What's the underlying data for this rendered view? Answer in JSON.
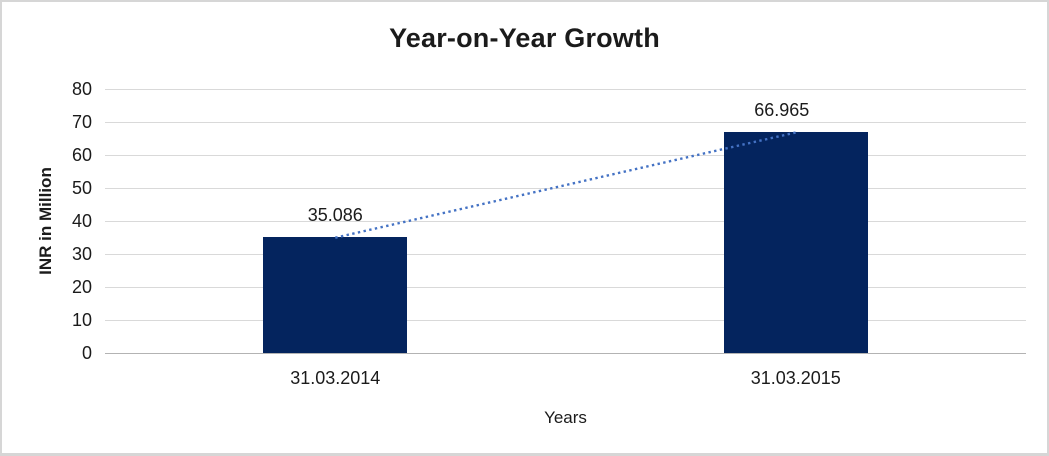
{
  "chart_data": {
    "type": "bar",
    "title": "Year-on-Year Growth",
    "categories": [
      "31.03.2014",
      "31.03.2015"
    ],
    "values": [
      35.086,
      66.965
    ],
    "data_labels": [
      "35.086",
      "66.965"
    ],
    "data_label_x_offsets": [
      0,
      -14
    ],
    "xlabel": "Years",
    "ylabel": "INR in Million",
    "ylim": [
      0,
      80
    ],
    "yticks": [
      0,
      10,
      20,
      30,
      40,
      50,
      60,
      70,
      80
    ],
    "grid": true,
    "legend": "none",
    "trendline": {
      "style": "dotted",
      "from": {
        "category": "31.03.2014",
        "value": 35.086
      },
      "to": {
        "category": "31.03.2015",
        "value": 66.965
      }
    },
    "colors": {
      "bar": "#04245E",
      "trendline": "#4472C4",
      "gridline": "#D9D9D9",
      "axis_line": "#B3B3B3",
      "text": "#1B1B1B",
      "frame_border": "#D6D6D6"
    }
  }
}
